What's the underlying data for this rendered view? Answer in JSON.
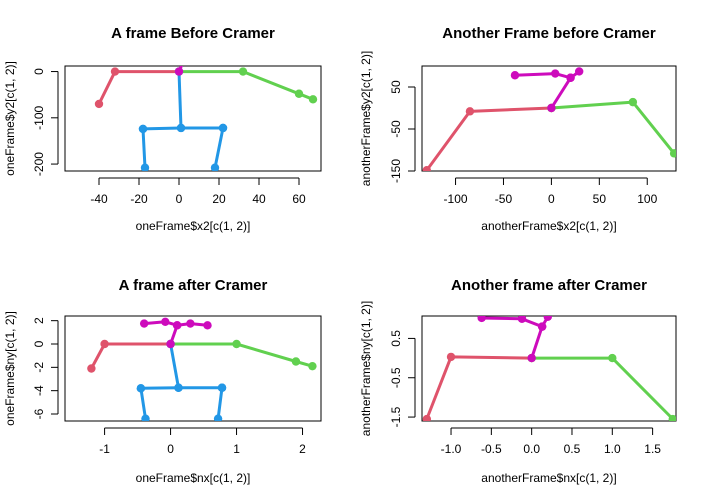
{
  "chart_data": [
    {
      "type": "line",
      "title": "A frame Before Cramer",
      "xlabel": "oneFrame$x2[c(1, 2)]",
      "ylabel": "oneFrame$y2[c(1, 2)]",
      "xlim": [
        -57,
        71
      ],
      "ylim": [
        -215,
        12
      ],
      "xticks": [
        -40,
        -20,
        0,
        20,
        40,
        60
      ],
      "yticks": [
        0,
        -100,
        -200
      ],
      "series": [
        {
          "color": "#DF536B",
          "x": [
            0,
            -32,
            -40
          ],
          "y": [
            0,
            0,
            -70
          ]
        },
        {
          "color": "#61D04F",
          "x": [
            0,
            32,
            60,
            67
          ],
          "y": [
            0,
            0,
            -48,
            -60
          ]
        },
        {
          "color": "#2297E6",
          "x": [
            -18,
            1,
            22
          ],
          "y": [
            -124,
            -122,
            -122
          ]
        },
        {
          "color": "#2297E6",
          "x": [
            1,
            0
          ],
          "y": [
            -122,
            0
          ]
        },
        {
          "color": "#2297E6",
          "x": [
            -18,
            -17
          ],
          "y": [
            -124,
            -208
          ]
        },
        {
          "color": "#2297E6",
          "x": [
            22,
            18
          ],
          "y": [
            -122,
            -208
          ]
        },
        {
          "color": "#CD0BBC",
          "x": [
            0,
            5
          ],
          "y": [
            0,
            52
          ]
        },
        {
          "color": "#CD0BBC",
          "x": [
            -11,
            -1,
            5,
            12,
            19
          ],
          "y": [
            57,
            62,
            52,
            57,
            52
          ]
        }
      ]
    },
    {
      "type": "line",
      "title": "Another Frame before Cramer",
      "xlabel": "anotherFrame$x2[c(1, 2)]",
      "ylabel": "anotherFrame$y2[c(1, 2)]",
      "xlim": [
        -135,
        130
      ],
      "ylim": [
        -150,
        100
      ],
      "xticks": [
        -100,
        -50,
        0,
        50,
        100
      ],
      "yticks": [
        50,
        -50,
        -150
      ],
      "series": [
        {
          "color": "#DF536B",
          "x": [
            0,
            -85,
            -130
          ],
          "y": [
            0,
            -8,
            -148
          ]
        },
        {
          "color": "#61D04F",
          "x": [
            0,
            85,
            128
          ],
          "y": [
            0,
            14,
            -108
          ]
        },
        {
          "color": "#CD0BBC",
          "x": [
            0,
            20
          ],
          "y": [
            0,
            72
          ]
        },
        {
          "color": "#CD0BBC",
          "x": [
            -38,
            4,
            20,
            29
          ],
          "y": [
            78,
            82,
            72,
            87
          ]
        }
      ]
    },
    {
      "type": "line",
      "title": "A frame after Cramer",
      "xlabel": "oneFrame$nx[c(1, 2)]",
      "ylabel": "oneFrame$ny[c(1, 2)]",
      "xlim": [
        -1.6,
        2.28
      ],
      "ylim": [
        -6.6,
        2.4
      ],
      "xticks": [
        -1,
        0,
        1,
        2
      ],
      "yticks": [
        2,
        0,
        -2,
        -4,
        -6
      ],
      "series": [
        {
          "color": "#DF536B",
          "x": [
            0,
            -1,
            -1.2
          ],
          "y": [
            0,
            0,
            -2.1
          ]
        },
        {
          "color": "#61D04F",
          "x": [
            0,
            1,
            1.9,
            2.15
          ],
          "y": [
            0,
            0,
            -1.5,
            -1.9
          ]
        },
        {
          "color": "#2297E6",
          "x": [
            -0.45,
            0.12,
            0.78
          ],
          "y": [
            -3.8,
            -3.75,
            -3.75
          ]
        },
        {
          "color": "#2297E6",
          "x": [
            0.12,
            0
          ],
          "y": [
            -3.75,
            0
          ]
        },
        {
          "color": "#2297E6",
          "x": [
            -0.45,
            -0.38
          ],
          "y": [
            -3.8,
            -6.4
          ]
        },
        {
          "color": "#2297E6",
          "x": [
            0.78,
            0.72
          ],
          "y": [
            -3.75,
            -6.4
          ]
        },
        {
          "color": "#CD0BBC",
          "x": [
            0,
            0.1
          ],
          "y": [
            0,
            1.6
          ]
        },
        {
          "color": "#CD0BBC",
          "x": [
            -0.4,
            -0.08,
            0.1,
            0.3,
            0.56
          ],
          "y": [
            1.75,
            1.9,
            1.6,
            1.75,
            1.6
          ]
        }
      ]
    },
    {
      "type": "line",
      "title": "Another frame after Cramer",
      "xlabel": "anotherFrame$nx[c(1, 2)]",
      "ylabel": "anotherFrame$ny[c(1, 2)]",
      "xlim": [
        -1.36,
        1.79
      ],
      "ylim": [
        -1.6,
        1.07
      ],
      "xticks": [
        -1.0,
        -0.5,
        0.0,
        0.5,
        1.0,
        1.5
      ],
      "xtick_labels": [
        "-1.0",
        "-0.5",
        "0.0",
        "0.5",
        "1.0",
        "1.5"
      ],
      "yticks": [
        0.5,
        -0.5,
        -1.5
      ],
      "series": [
        {
          "color": "#DF536B",
          "x": [
            0,
            -1,
            -1.3
          ],
          "y": [
            0,
            0.03,
            -1.55
          ]
        },
        {
          "color": "#61D04F",
          "x": [
            0,
            1,
            1.75
          ],
          "y": [
            0,
            0,
            -1.55
          ]
        },
        {
          "color": "#CD0BBC",
          "x": [
            0,
            0.13
          ],
          "y": [
            0,
            0.8
          ]
        },
        {
          "color": "#CD0BBC",
          "x": [
            -0.62,
            -0.12,
            0.13,
            0.2
          ],
          "y": [
            1.02,
            1.0,
            0.8,
            1.05
          ]
        }
      ]
    }
  ]
}
